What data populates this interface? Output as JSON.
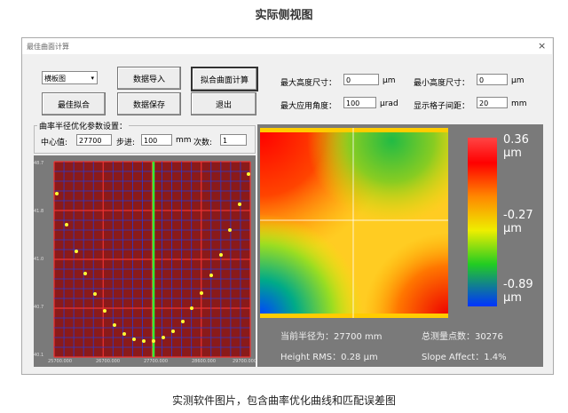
{
  "page_title": "实际侧视图",
  "window": {
    "title": "最佳曲面计算",
    "close": "×"
  },
  "controls": {
    "dropdown": "横板图",
    "buttons": [
      "数据导入",
      "拟合曲面计算",
      "最佳拟合",
      "数据保存",
      "退出"
    ]
  },
  "fields": [
    {
      "label": "最大高度尺寸：",
      "value": "0",
      "unit": "μm"
    },
    {
      "label": "最小高度尺寸：",
      "value": "0",
      "unit": "μm"
    },
    {
      "label": "最大应用角度：",
      "value": "100",
      "unit": "μrad"
    },
    {
      "label": "显示格子间距：",
      "value": "20",
      "unit": "mm"
    }
  ],
  "params": {
    "title": "曲率半径优化参数设置：",
    "center_label": "中心值:",
    "center_value": "27700",
    "step_label": "步进:",
    "step_value": "100",
    "step_unit": "mm",
    "count_label": "次数:",
    "count_value": "1"
  },
  "plot": {
    "y_labels": [
      "48.7",
      "41.8",
      "41.0",
      "40.7",
      "40.1"
    ],
    "x_labels": [
      "25700.000",
      "26700.000",
      "27700.000",
      "28600.000",
      "29700.000"
    ]
  },
  "colorbar": [
    {
      "value": "0.36",
      "unit": "μm"
    },
    {
      "value": "-0.27",
      "unit": "μm"
    },
    {
      "value": "-0.89",
      "unit": "μm"
    }
  ],
  "stats": [
    "当前半径为：27700 mm",
    "总测量点数：30276",
    "Height RMS：0.28 μm",
    "Slope Affect：1.4%"
  ],
  "caption": "实测软件图片，包含曲率优化曲线和匹配误差图"
}
